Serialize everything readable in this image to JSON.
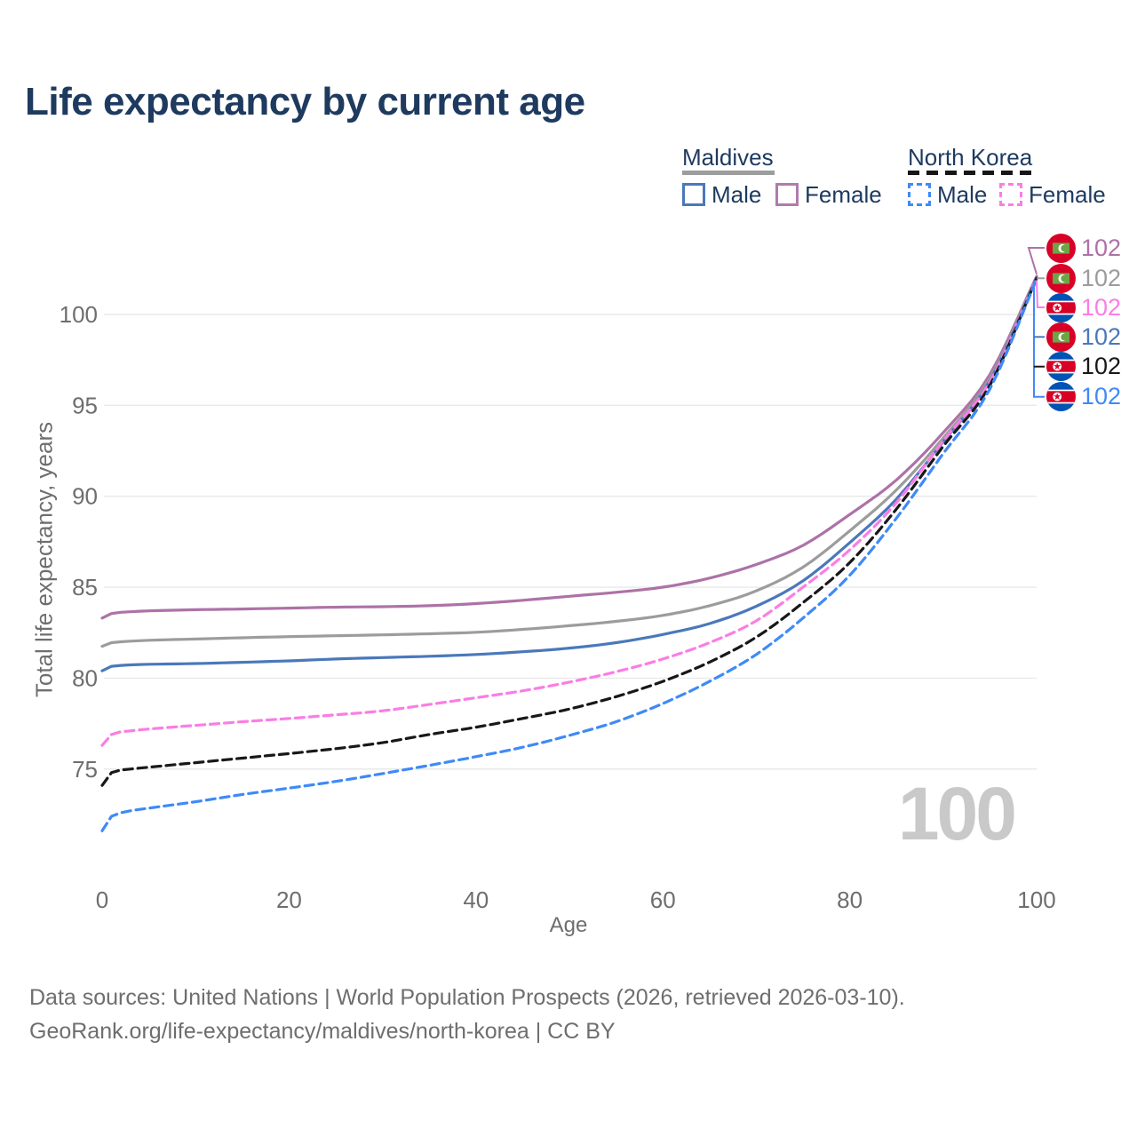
{
  "header": {
    "title": "Life expectancy by current age"
  },
  "legend": {
    "maldives": {
      "title": "Maldives",
      "male": "Male",
      "female": "Female",
      "male_color": "#4a78bb",
      "female_color": "#b27aad",
      "underline_color": "#9c9c9c",
      "line_style": "solid"
    },
    "north_korea": {
      "title": "North Korea",
      "male": "Male",
      "female": "Female",
      "male_color": "#3e8af8",
      "female_color": "#fb7de4",
      "underline_color": "#161616",
      "line_style": "dashed"
    }
  },
  "chart_data": {
    "type": "line",
    "title": "Life expectancy by current age",
    "xlabel": "Age",
    "ylabel": "Total life expectancy, years",
    "xlim": [
      0,
      100
    ],
    "ylim": [
      71,
      103
    ],
    "xticks": [
      0,
      20,
      40,
      60,
      80,
      100
    ],
    "yticks": [
      75,
      80,
      85,
      90,
      95,
      100
    ],
    "grid": "horizontal",
    "legend_position": "top-right",
    "watermark": "100",
    "x_ages": [
      0,
      1,
      2,
      3,
      5,
      10,
      15,
      20,
      25,
      30,
      35,
      40,
      45,
      50,
      55,
      60,
      65,
      70,
      75,
      80,
      85,
      90,
      95,
      100
    ],
    "series": [
      {
        "name": "Maldives Female",
        "country": "Maldives",
        "sex": "Female",
        "color": "#ad72a7",
        "dashed": false,
        "values": [
          83.3,
          83.55,
          83.62,
          83.65,
          83.7,
          83.76,
          83.8,
          83.85,
          83.9,
          83.93,
          83.98,
          84.1,
          84.28,
          84.5,
          84.72,
          85.0,
          85.5,
          86.25,
          87.3,
          89.0,
          90.9,
          93.5,
          96.7,
          102.1
        ]
      },
      {
        "name": "Maldives Both sexes",
        "country": "Maldives",
        "sex": "Both",
        "color": "#9c9c9c",
        "dashed": false,
        "values": [
          81.75,
          81.95,
          82.0,
          82.03,
          82.08,
          82.15,
          82.22,
          82.28,
          82.33,
          82.38,
          82.44,
          82.52,
          82.68,
          82.88,
          83.12,
          83.45,
          83.98,
          84.8,
          86.1,
          88.1,
          90.35,
          93.2,
          96.5,
          102.05
        ]
      },
      {
        "name": "Maldives Male",
        "country": "Maldives",
        "sex": "Male",
        "color": "#4a78bb",
        "dashed": false,
        "values": [
          80.4,
          80.65,
          80.7,
          80.73,
          80.76,
          80.8,
          80.87,
          80.95,
          81.05,
          81.13,
          81.2,
          81.3,
          81.45,
          81.65,
          81.95,
          82.4,
          83.0,
          83.95,
          85.35,
          87.45,
          89.85,
          93.0,
          96.35,
          102.0
        ]
      },
      {
        "name": "North Korea Female",
        "country": "North Korea",
        "sex": "Female",
        "color": "#fb7de4",
        "dashed": true,
        "values": [
          76.3,
          76.9,
          77.05,
          77.1,
          77.2,
          77.4,
          77.6,
          77.78,
          77.98,
          78.2,
          78.55,
          78.92,
          79.3,
          79.78,
          80.35,
          81.05,
          81.95,
          83.15,
          85.0,
          87.05,
          89.65,
          93.05,
          96.3,
          102.0
        ]
      },
      {
        "name": "North Korea Both sexes",
        "country": "North Korea",
        "sex": "Both",
        "color": "#181818",
        "dashed": true,
        "values": [
          74.1,
          74.8,
          74.95,
          75.0,
          75.1,
          75.35,
          75.6,
          75.85,
          76.12,
          76.45,
          76.9,
          77.3,
          77.78,
          78.3,
          78.98,
          79.82,
          80.88,
          82.25,
          84.15,
          86.35,
          89.3,
          92.75,
          96.1,
          102.0
        ]
      },
      {
        "name": "North Korea Male",
        "country": "North Korea",
        "sex": "Male",
        "color": "#3e8af8",
        "dashed": true,
        "values": [
          71.6,
          72.4,
          72.6,
          72.7,
          72.85,
          73.2,
          73.6,
          73.95,
          74.32,
          74.75,
          75.2,
          75.68,
          76.2,
          76.85,
          77.6,
          78.6,
          79.82,
          81.3,
          83.3,
          85.65,
          88.8,
          92.35,
          95.9,
          101.95
        ]
      }
    ],
    "end_labels": [
      {
        "flag": "maldives",
        "value": "102",
        "color": "#ad72a7"
      },
      {
        "flag": "maldives",
        "value": "102",
        "color": "#9c9c9c"
      },
      {
        "flag": "north-korea",
        "value": "102",
        "color": "#fb7de4"
      },
      {
        "flag": "maldives",
        "value": "102",
        "color": "#4a78bb"
      },
      {
        "flag": "north-korea",
        "value": "102",
        "color": "#181818"
      },
      {
        "flag": "north-korea",
        "value": "102",
        "color": "#3e8af8"
      }
    ]
  },
  "footer": {
    "line1": "Data sources: United Nations | World Population Prospects (2026, retrieved 2026-03-10).",
    "line2": "GeoRank.org/life-expectancy/maldives/north-korea | CC BY"
  }
}
